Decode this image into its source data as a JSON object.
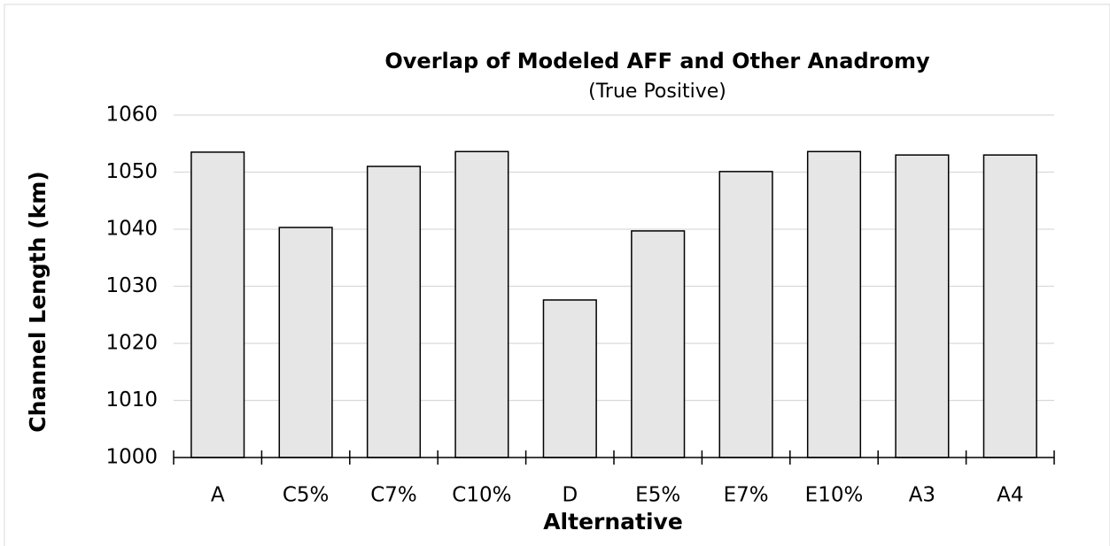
{
  "chart_data": {
    "type": "bar",
    "title": "Overlap of Modeled AFF and Other Anadromy",
    "subtitle": "(True Positive)",
    "x_label": "Alternative",
    "y_label": "Channel Length (km)",
    "categories": [
      "A",
      "C5%",
      "C7%",
      "C10%",
      "D",
      "E5%",
      "E7%",
      "E10%",
      "A3",
      "A4"
    ],
    "values": [
      1053.5,
      1040.3,
      1051.0,
      1053.6,
      1027.6,
      1039.7,
      1050.1,
      1053.6,
      1053.0,
      1053.0
    ],
    "color": "#e6e6e6",
    "ylim": [
      1000,
      1060
    ],
    "yticks": [
      1000,
      1010,
      1020,
      1030,
      1040,
      1050,
      1060
    ],
    "grid": true
  }
}
